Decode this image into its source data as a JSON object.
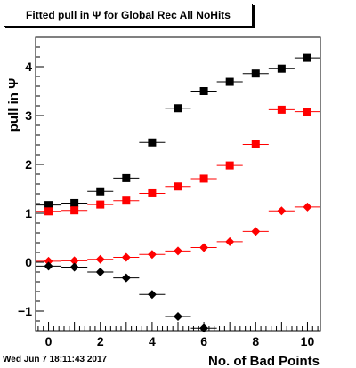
{
  "chart_data": {
    "type": "scatter",
    "title": "Fitted pull in  Ψ  for Global Rec All NoHits",
    "xlabel": "No. of Bad Points",
    "ylabel": "pull in  Ψ",
    "xlim": [
      -0.5,
      10.5
    ],
    "ylim": [
      -1.4,
      4.6
    ],
    "xticks": [
      "0",
      "2",
      "4",
      "6",
      "8",
      "10"
    ],
    "yticks": [
      "−1",
      "0",
      "1",
      "2",
      "3",
      "4"
    ],
    "grid": false,
    "series": [
      {
        "marker": "square",
        "color": "#000000",
        "x": [
          0,
          1,
          2,
          3,
          4,
          5,
          6,
          7,
          8,
          9,
          10
        ],
        "y": [
          1.17,
          1.21,
          1.45,
          1.72,
          2.45,
          3.15,
          3.5,
          3.69,
          3.86,
          3.96,
          4.18
        ]
      },
      {
        "marker": "square",
        "color": "#ff0000",
        "x": [
          0,
          1,
          2,
          3,
          4,
          5,
          6,
          7,
          8,
          9,
          10
        ],
        "y": [
          1.04,
          1.06,
          1.18,
          1.26,
          1.41,
          1.55,
          1.71,
          1.98,
          2.41,
          3.12,
          3.08
        ]
      },
      {
        "marker": "diamond",
        "color": "#ff0000",
        "x": [
          0,
          1,
          2,
          3,
          4,
          5,
          6,
          7,
          8,
          9,
          10
        ],
        "y": [
          0.02,
          0.03,
          0.06,
          0.1,
          0.16,
          0.23,
          0.3,
          0.42,
          0.63,
          1.05,
          1.13
        ]
      },
      {
        "marker": "diamond",
        "color": "#000000",
        "x": [
          0,
          1,
          2,
          3,
          4,
          5,
          6
        ],
        "y": [
          -0.08,
          -0.1,
          -0.2,
          -0.32,
          -0.66,
          -1.11,
          -1.35
        ]
      }
    ]
  },
  "timestamp": "Wed Jun  7 18:11:43 2017"
}
